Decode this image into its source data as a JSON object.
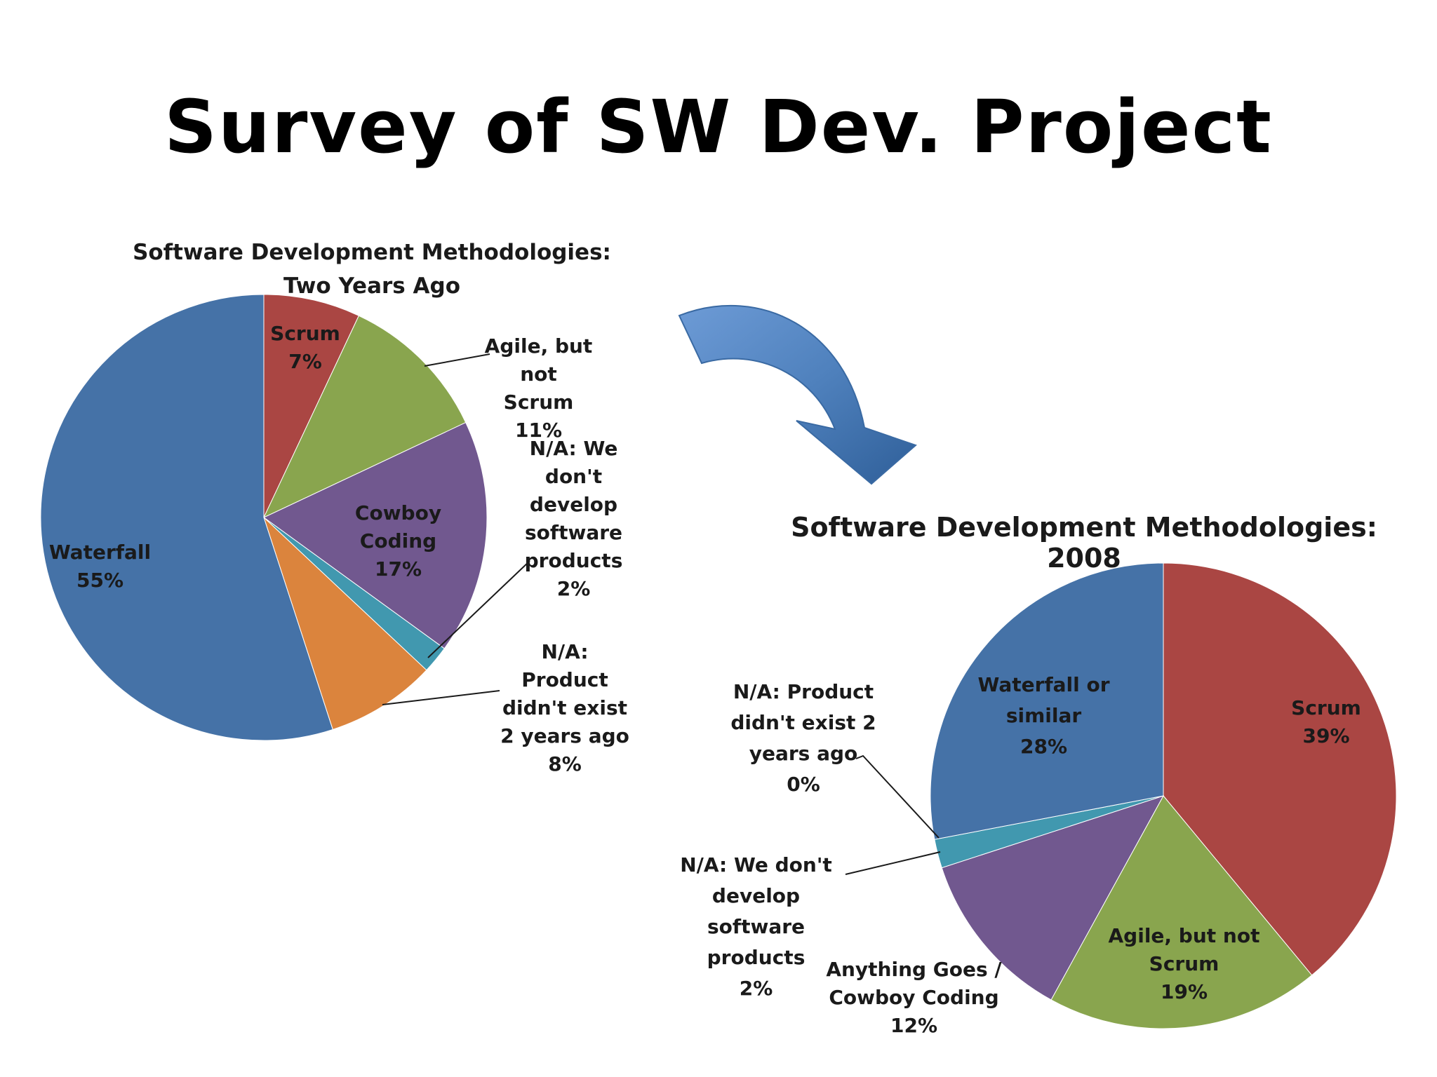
{
  "slide": {
    "title": "Survey of SW Dev. Project"
  },
  "colors": {
    "waterfall": "#4572A7",
    "scrum": "#AA4643",
    "agile": "#89A54E",
    "cowboy": "#71588F",
    "na_dev": "#4198AF",
    "na_product": "#DB843D",
    "arrow": "#4F81BD"
  },
  "chart_data": [
    {
      "type": "pie",
      "title": "Software Development Methodologies: Two Years Ago",
      "slices": [
        {
          "label": "Scrum",
          "value": 7,
          "value_label": "7%",
          "color": "#AA4643"
        },
        {
          "label": "Agile, but not Scrum",
          "value": 11,
          "value_label": "11%",
          "color": "#89A54E"
        },
        {
          "label": "Cowboy Coding",
          "value": 17,
          "value_label": "17%",
          "color": "#71588F"
        },
        {
          "label": "N/A: We don't develop software products",
          "value": 2,
          "value_label": "2%",
          "color": "#4198AF"
        },
        {
          "label": "N/A: Product didn't exist 2 years ago",
          "value": 8,
          "value_label": "8%",
          "color": "#DB843D"
        },
        {
          "label": "Waterfall",
          "value": 55,
          "value_label": "55%",
          "color": "#4572A7"
        }
      ]
    },
    {
      "type": "pie",
      "title": "Software Development Methodologies: 2008",
      "slices": [
        {
          "label": "Scrum",
          "value": 39,
          "value_label": "39%",
          "color": "#AA4643"
        },
        {
          "label": "Agile, but not Scrum",
          "value": 19,
          "value_label": "19%",
          "color": "#89A54E"
        },
        {
          "label": "Anything Goes / Cowboy Coding",
          "value": 12,
          "value_label": "12%",
          "color": "#71588F"
        },
        {
          "label": "N/A: We don't develop software products",
          "value": 2,
          "value_label": "2%",
          "color": "#4198AF"
        },
        {
          "label": "N/A: Product didn't exist 2 years ago",
          "value": 0,
          "value_label": "0%",
          "color": "#DB843D"
        },
        {
          "label": "Waterfall or similar",
          "value": 28,
          "value_label": "28%",
          "color": "#4572A7"
        }
      ]
    }
  ]
}
